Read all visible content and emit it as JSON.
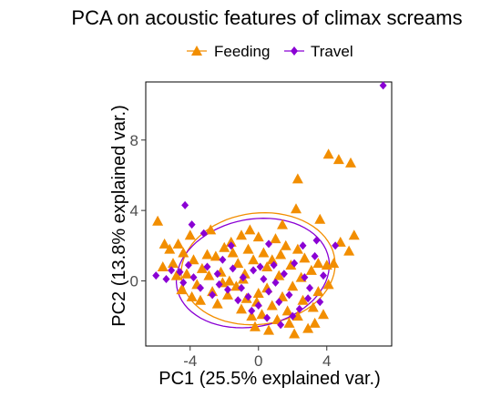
{
  "chart_data": {
    "type": "scatter",
    "title": "PCA on acoustic features of climax screams",
    "xlabel": "PC1 (25.5% explained var.)",
    "ylabel": "PC2 (13.8% explained var.)",
    "xlim": [
      -6.6,
      7.8
    ],
    "ylim": [
      -3.7,
      11.3
    ],
    "xticks": [
      -4,
      0,
      4
    ],
    "xtick_labels": [
      "-4",
      "0",
      "4"
    ],
    "yticks": [
      0,
      4,
      8
    ],
    "ytick_labels": [
      "0",
      "4",
      "8"
    ],
    "grid": false,
    "legend_position": "top",
    "series": [
      {
        "name": "Feeding",
        "marker": "triangle",
        "color": "#F28E00",
        "points": [
          [
            -5.9,
            3.4
          ],
          [
            -5.5,
            2.1
          ],
          [
            -5.2,
            1.8
          ],
          [
            -5.6,
            0.8
          ],
          [
            -5.0,
            1.0
          ],
          [
            -4.7,
            2.1
          ],
          [
            -4.4,
            1.6
          ],
          [
            -4.2,
            0.4
          ],
          [
            -4.8,
            0.3
          ],
          [
            -4.0,
            2.6
          ],
          [
            -3.8,
            1.2
          ],
          [
            -3.6,
            -0.2
          ],
          [
            -3.3,
            0.7
          ],
          [
            -3.0,
            1.5
          ],
          [
            -2.8,
            2.9
          ],
          [
            -2.5,
            1.4
          ],
          [
            -2.2,
            0.5
          ],
          [
            -2.0,
            1.9
          ],
          [
            -1.7,
            0.0
          ],
          [
            -1.5,
            1.6
          ],
          [
            -1.2,
            1.0
          ],
          [
            -1.0,
            2.6
          ],
          [
            -0.8,
            0.4
          ],
          [
            -0.6,
            1.8
          ],
          [
            -0.3,
            1.2
          ],
          [
            0.0,
            2.5
          ],
          [
            0.3,
            1.6
          ],
          [
            0.5,
            0.8
          ],
          [
            0.8,
            1.2
          ],
          [
            1.0,
            2.4
          ],
          [
            1.3,
            1.5
          ],
          [
            1.6,
            2.0
          ],
          [
            1.9,
            0.9
          ],
          [
            2.3,
            1.8
          ],
          [
            2.7,
            1.3
          ],
          [
            3.1,
            0.6
          ],
          [
            3.5,
            1.0
          ],
          [
            3.6,
            3.5
          ],
          [
            4.0,
            0.9
          ],
          [
            4.4,
            1.0
          ],
          [
            4.8,
            2.2
          ],
          [
            5.3,
            1.7
          ],
          [
            5.6,
            2.6
          ],
          [
            4.1,
            7.2
          ],
          [
            4.7,
            6.9
          ],
          [
            5.4,
            6.7
          ],
          [
            2.3,
            5.8
          ],
          [
            2.2,
            4.1
          ],
          [
            1.4,
            3.2
          ],
          [
            -3.4,
            -1.1
          ],
          [
            -2.7,
            -0.6
          ],
          [
            -2.4,
            -1.3
          ],
          [
            -1.8,
            -0.8
          ],
          [
            -1.3,
            -0.3
          ],
          [
            -1.0,
            -1.6
          ],
          [
            -0.7,
            -1.0
          ],
          [
            -0.4,
            -2.0
          ],
          [
            -0.1,
            -1.2
          ],
          [
            0.2,
            -1.9
          ],
          [
            0.5,
            -0.4
          ],
          [
            0.8,
            -1.4
          ],
          [
            1.1,
            -2.2
          ],
          [
            1.4,
            -0.9
          ],
          [
            1.7,
            -1.7
          ],
          [
            2.0,
            -0.3
          ],
          [
            2.3,
            -2.0
          ],
          [
            2.6,
            -1.1
          ],
          [
            2.9,
            -2.7
          ],
          [
            3.2,
            -1.5
          ],
          [
            3.5,
            -0.6
          ],
          [
            3.8,
            -1.9
          ],
          [
            4.1,
            -0.2
          ],
          [
            -4.5,
            -0.5
          ],
          [
            -3.9,
            -0.9
          ],
          [
            -2.1,
            -0.1
          ],
          [
            -0.9,
            0.1
          ],
          [
            0.0,
            -0.7
          ],
          [
            1.2,
            0.3
          ],
          [
            2.5,
            0.2
          ],
          [
            1.8,
            -2.4
          ],
          [
            -0.2,
            -2.6
          ],
          [
            0.6,
            -2.8
          ],
          [
            2.1,
            -3.0
          ],
          [
            3.3,
            -2.4
          ],
          [
            -1.6,
            2.2
          ],
          [
            -2.9,
            0.3
          ],
          [
            -0.5,
            2.9
          ]
        ]
      },
      {
        "name": "Travel",
        "marker": "diamond",
        "color": "#8A00D4",
        "points": [
          [
            -6.0,
            0.3
          ],
          [
            -5.4,
            0.1
          ],
          [
            -5.1,
            0.6
          ],
          [
            -4.4,
            -0.1
          ],
          [
            -4.1,
            0.9
          ],
          [
            -3.8,
            0.2
          ],
          [
            -3.4,
            -0.4
          ],
          [
            -3.0,
            0.8
          ],
          [
            -2.7,
            -0.8
          ],
          [
            -2.4,
            0.4
          ],
          [
            -2.1,
            1.2
          ],
          [
            -1.8,
            -0.5
          ],
          [
            -1.5,
            0.7
          ],
          [
            -1.2,
            -1.1
          ],
          [
            -0.9,
            0.2
          ],
          [
            -0.6,
            -0.9
          ],
          [
            -0.3,
            0.6
          ],
          [
            0.0,
            -1.4
          ],
          [
            0.3,
            0.1
          ],
          [
            0.6,
            -0.6
          ],
          [
            0.9,
            0.9
          ],
          [
            1.2,
            -1.2
          ],
          [
            1.5,
            0.4
          ],
          [
            1.8,
            -0.8
          ],
          [
            2.1,
            1.0
          ],
          [
            2.4,
            -1.6
          ],
          [
            2.7,
            0.2
          ],
          [
            3.0,
            -0.4
          ],
          [
            3.3,
            1.4
          ],
          [
            3.6,
            -1.2
          ],
          [
            4.5,
            2.0
          ],
          [
            3.4,
            2.3
          ],
          [
            2.6,
            2.0
          ],
          [
            0.6,
            2.1
          ],
          [
            -1.6,
            2.0
          ],
          [
            -4.3,
            4.3
          ],
          [
            -3.9,
            3.2
          ],
          [
            -4.6,
            0.5
          ],
          [
            -3.2,
            2.7
          ],
          [
            7.3,
            11.1
          ],
          [
            0.5,
            -2.1
          ],
          [
            1.3,
            -2.5
          ],
          [
            -0.4,
            -1.7
          ],
          [
            2.0,
            -2.0
          ],
          [
            2.9,
            -1.0
          ],
          [
            -2.3,
            -0.2
          ],
          [
            -1.0,
            -0.4
          ],
          [
            0.1,
            0.8
          ],
          [
            1.0,
            -0.1
          ],
          [
            3.8,
            0.3
          ]
        ]
      }
    ]
  }
}
